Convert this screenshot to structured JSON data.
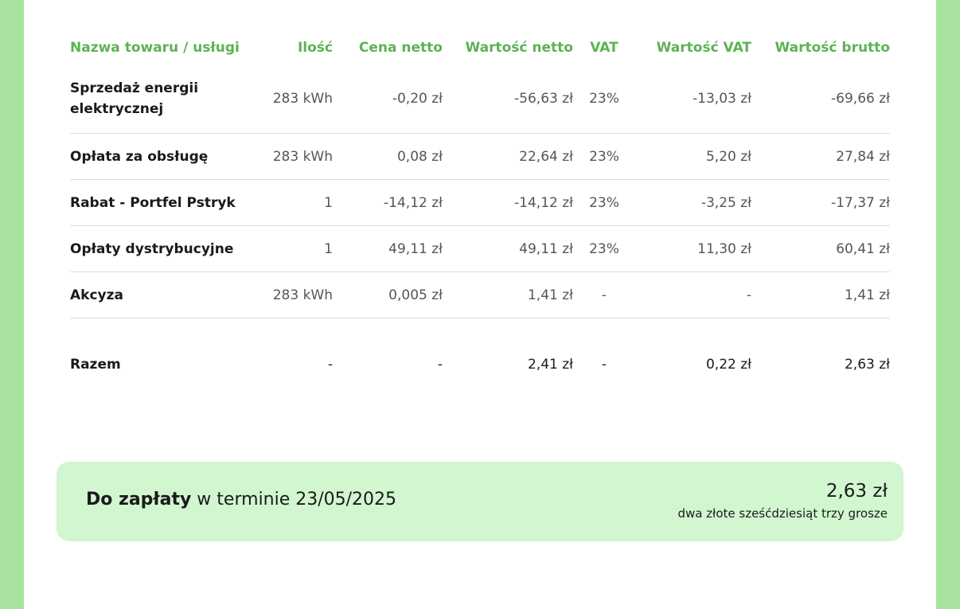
{
  "table": {
    "headers": {
      "name": "Nazwa towaru / usługi",
      "qty": "Ilość",
      "net_price": "Cena netto",
      "net_value": "Wartość netto",
      "vat": "VAT",
      "vat_value": "Wartość VAT",
      "gross_value": "Wartość brutto"
    },
    "rows": [
      {
        "name": "Sprzedaż energii elektrycznej",
        "qty": "283 kWh",
        "net_price": "-0,20 zł",
        "net_value": "-56,63 zł",
        "vat": "23%",
        "vat_value": "-13,03 zł",
        "gross_value": "-69,66 zł"
      },
      {
        "name": "Opłata za obsługę",
        "qty": "283 kWh",
        "net_price": "0,08 zł",
        "net_value": "22,64 zł",
        "vat": "23%",
        "vat_value": "5,20 zł",
        "gross_value": "27,84 zł"
      },
      {
        "name": "Rabat - Portfel Pstryk",
        "qty": "1",
        "net_price": "-14,12 zł",
        "net_value": "-14,12 zł",
        "vat": "23%",
        "vat_value": "-3,25 zł",
        "gross_value": "-17,37 zł"
      },
      {
        "name": "Opłaty dystrybucyjne",
        "qty": "1",
        "net_price": "49,11 zł",
        "net_value": "49,11 zł",
        "vat": "23%",
        "vat_value": "11,30 zł",
        "gross_value": "60,41 zł"
      },
      {
        "name": "Akcyza",
        "qty": "283 kWh",
        "net_price": "0,005 zł",
        "net_value": "1,41 zł",
        "vat": "-",
        "vat_value": "-",
        "gross_value": "1,41 zł"
      }
    ],
    "total": {
      "name": "Razem",
      "qty": "-",
      "net_price": "-",
      "net_value": "2,41 zł",
      "vat": "-",
      "vat_value": "0,22 zł",
      "gross_value": "2,63 zł"
    }
  },
  "payment": {
    "label_bold": "Do zapłaty",
    "label_rest": " w terminie 23/05/2025",
    "amount": "2,63 zł",
    "amount_words": "dwa złote sześćdziesiąt trzy grosze"
  },
  "colors": {
    "accent": "#5cb352",
    "background": "#a8e3a0",
    "payment_box": "#d2f6d0"
  }
}
